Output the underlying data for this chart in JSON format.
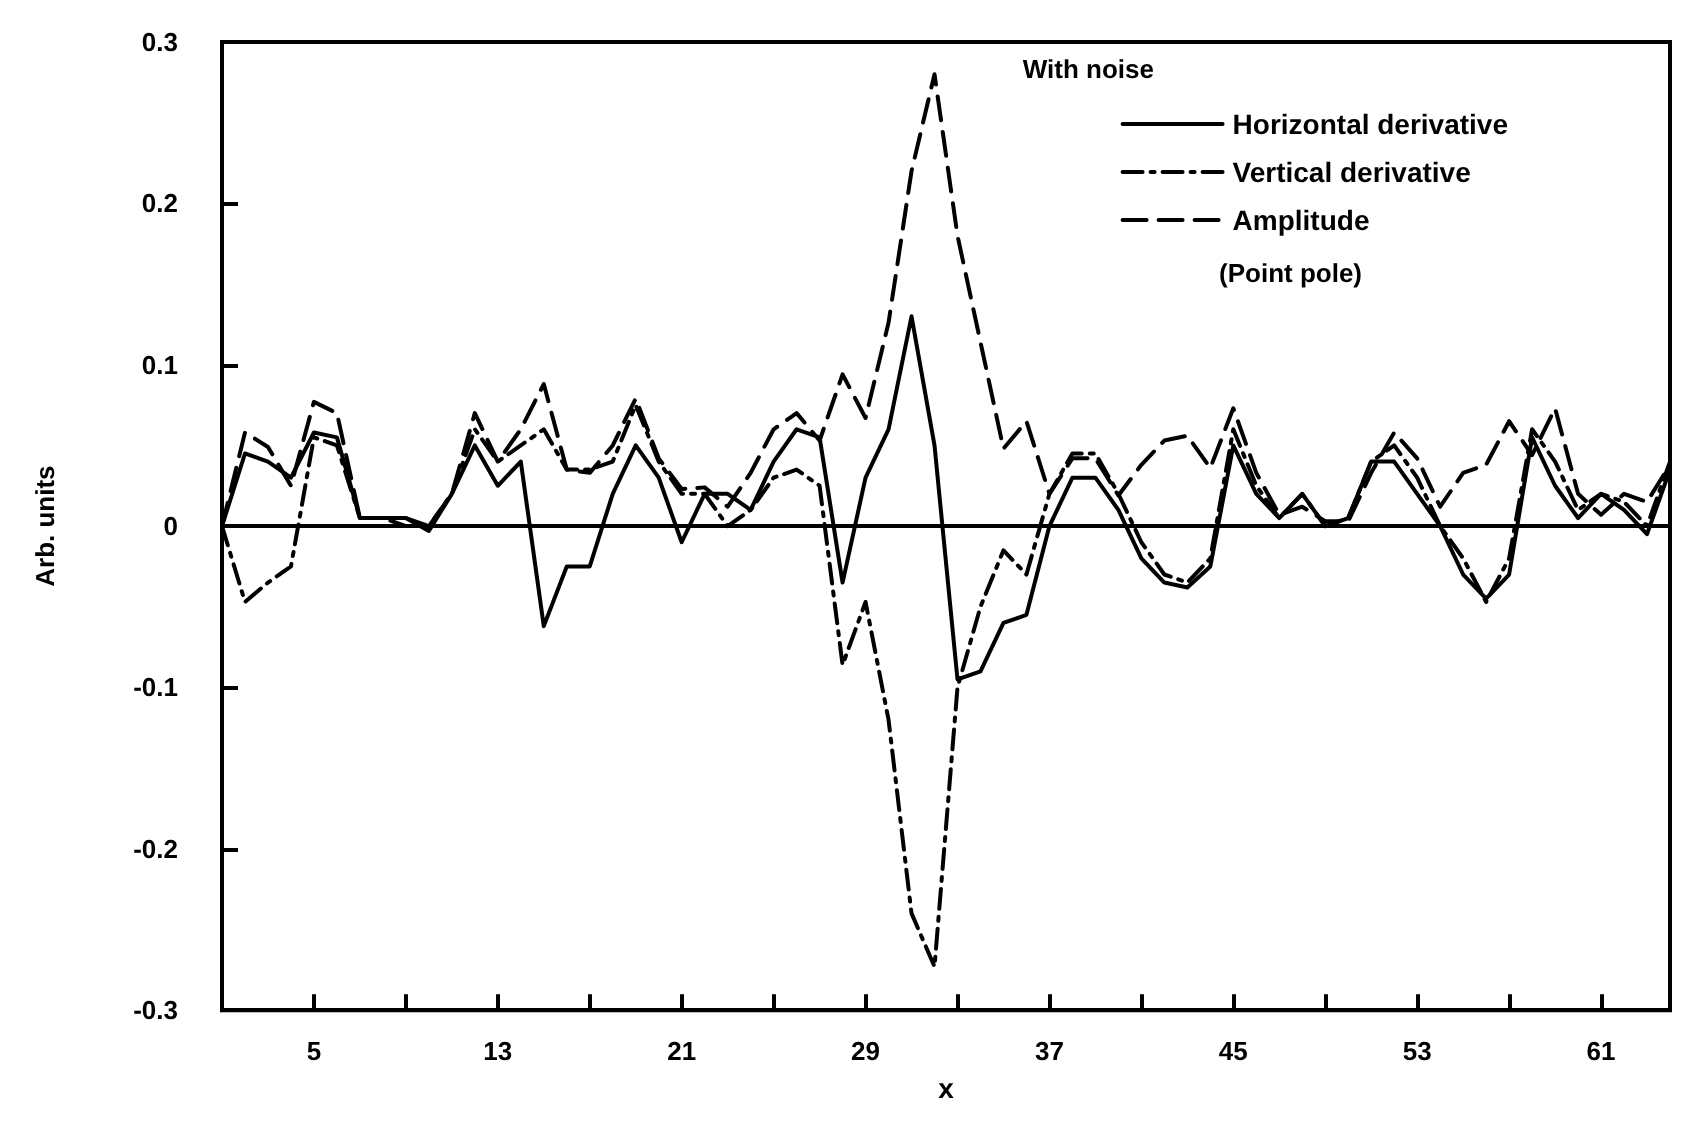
{
  "chart_data": {
    "type": "line",
    "xlabel": "x",
    "ylabel": "Arb. units",
    "legend_title": "With noise",
    "annotations": [
      "(Point pole)"
    ],
    "x": [
      1,
      2,
      3,
      4,
      5,
      6,
      7,
      8,
      9,
      10,
      11,
      12,
      13,
      14,
      15,
      16,
      17,
      18,
      19,
      20,
      21,
      22,
      23,
      24,
      25,
      26,
      27,
      28,
      29,
      30,
      31,
      32,
      33,
      34,
      35,
      36,
      37,
      38,
      39,
      40,
      41,
      42,
      43,
      44,
      45,
      46,
      47,
      48,
      49,
      50,
      51,
      52,
      53,
      54,
      55,
      56,
      57,
      58,
      59,
      60,
      61,
      62,
      63,
      64
    ],
    "series": [
      {
        "name": "Horizontal derivative",
        "color": "#000000",
        "line_style": "solid",
        "values": [
          0,
          0.045,
          0.04,
          0.03,
          0.058,
          0.055,
          0.005,
          0.005,
          0.005,
          -0.003,
          0.02,
          0.05,
          0.025,
          0.04,
          -0.062,
          -0.025,
          -0.025,
          0.02,
          0.05,
          0.03,
          -0.01,
          0.02,
          0.02,
          0.01,
          0.04,
          0.06,
          0.055,
          -0.035,
          0.03,
          0.06,
          0.13,
          0.05,
          -0.095,
          -0.09,
          -0.06,
          -0.055,
          0,
          0.03,
          0.03,
          0.01,
          -0.02,
          -0.035,
          -0.038,
          -0.025,
          0.05,
          0.02,
          0.005,
          0.02,
          0,
          0.005,
          0.04,
          0.04,
          0.02,
          0,
          -0.03,
          -0.045,
          -0.03,
          0.055,
          0.025,
          0.005,
          0.02,
          0.01,
          -0.005,
          0.035
        ]
      },
      {
        "name": "Vertical derivative",
        "color": "#000000",
        "line_style": "dashdot",
        "values": [
          0,
          -0.047,
          -0.035,
          -0.025,
          0.055,
          0.05,
          0.005,
          0.005,
          0,
          0,
          0.02,
          0.06,
          0.04,
          0.05,
          0.06,
          0.035,
          0.035,
          0.04,
          0.075,
          0.04,
          0.02,
          0.02,
          0,
          0.01,
          0.03,
          0.035,
          0.025,
          -0.086,
          -0.047,
          -0.12,
          -0.24,
          -0.273,
          -0.1,
          -0.05,
          -0.015,
          -0.03,
          0.02,
          0.045,
          0.045,
          0.02,
          -0.01,
          -0.03,
          -0.035,
          -0.02,
          0.06,
          0.025,
          0.005,
          0.02,
          0,
          0.005,
          0.04,
          0.05,
          0.03,
          0,
          -0.02,
          -0.047,
          -0.02,
          0.06,
          0.04,
          0.01,
          0.02,
          0.015,
          0,
          0.04
        ]
      },
      {
        "name": "Amplitude",
        "color": "#000000",
        "line_style": "dashed",
        "values": [
          0,
          0.058,
          0.049,
          0.025,
          0.077,
          0.07,
          0.005,
          0.005,
          0.005,
          0,
          0.02,
          0.07,
          0.04,
          0.06,
          0.088,
          0.035,
          0.033,
          0.05,
          0.079,
          0.042,
          0.023,
          0.024,
          0.012,
          0.033,
          0.06,
          0.07,
          0.053,
          0.094,
          0.067,
          0.126,
          0.22,
          0.28,
          0.18,
          0.114,
          0.048,
          0.065,
          0.02,
          0.042,
          0.042,
          0.019,
          0.038,
          0.053,
          0.056,
          0.036,
          0.073,
          0.033,
          0.007,
          0.012,
          0.003,
          0.003,
          0.033,
          0.058,
          0.042,
          0.012,
          0.033,
          0.038,
          0.065,
          0.044,
          0.073,
          0.02,
          0.007,
          0.02,
          0.015,
          0.038
        ]
      }
    ],
    "xlim": [
      1,
      64
    ],
    "xticks": [
      5,
      {
        "value": 9,
        "label": null
      },
      13,
      {
        "value": 17,
        "label": null
      },
      21,
      {
        "value": 25,
        "label": null
      },
      29,
      {
        "value": 33,
        "label": null
      },
      37,
      {
        "value": 41,
        "label": null
      },
      45,
      {
        "value": 49,
        "label": null
      },
      53,
      {
        "value": 57,
        "label": null
      },
      61
    ],
    "ylim": [
      -0.3,
      0.3
    ],
    "yticks": [
      -0.3,
      -0.2,
      -0.1,
      0,
      0.1,
      0.2,
      0.3
    ],
    "ref_lines": [
      {
        "axis": "y",
        "value": 0,
        "color": "#000000",
        "line_style": "solid"
      }
    ],
    "legend": "top right",
    "grid": false,
    "marker": "none"
  }
}
